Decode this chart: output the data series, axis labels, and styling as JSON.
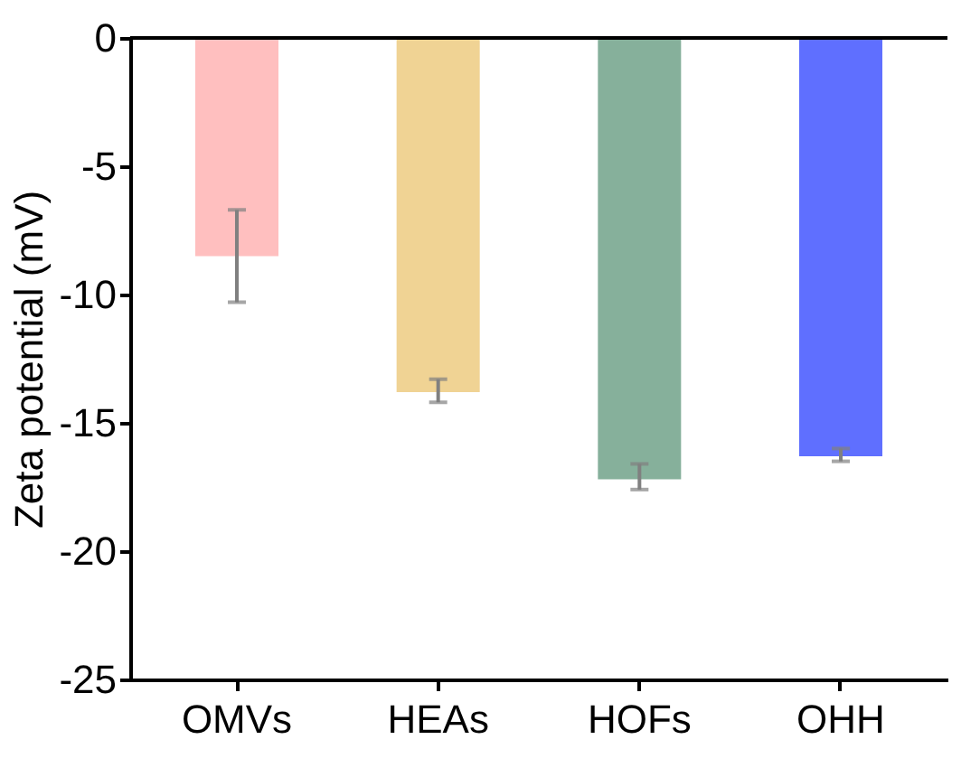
{
  "chart_data": {
    "type": "bar",
    "ylabel": "Zeta potential (mV)",
    "categories": [
      "OMVs",
      "HEAs",
      "HOFs",
      "OHH"
    ],
    "values": [
      -8.5,
      -13.8,
      -17.2,
      -16.3
    ],
    "colors": [
      "#ffbfbf",
      "#f0d394",
      "#86b09b",
      "#5f6fff"
    ],
    "errors": [
      [
        -10.3,
        -6.7
      ],
      [
        -14.2,
        -13.3
      ],
      [
        -17.6,
        -16.6
      ],
      [
        -16.5,
        -16.0
      ]
    ],
    "ylim": [
      -25,
      0
    ],
    "yticks": [
      -25,
      -20,
      -15,
      -10,
      -5,
      0
    ],
    "grid": false
  }
}
